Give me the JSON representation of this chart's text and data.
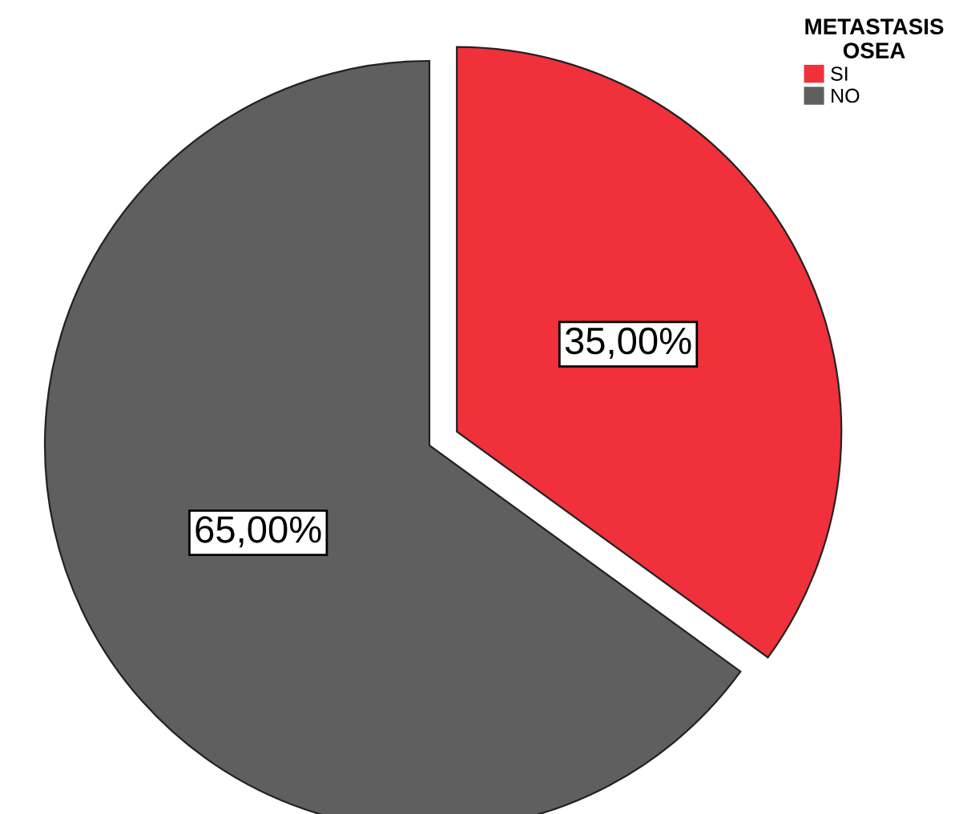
{
  "chart_data": {
    "type": "pie",
    "legend_title": "METASTASIS\nOSEA",
    "legend": "top right",
    "categories": [
      "SI",
      "NO"
    ],
    "values": [
      35,
      65
    ],
    "colors": [
      "#f0303a",
      "#5f5f5f"
    ],
    "value_labels": [
      "35,00%",
      "65,00%"
    ]
  }
}
